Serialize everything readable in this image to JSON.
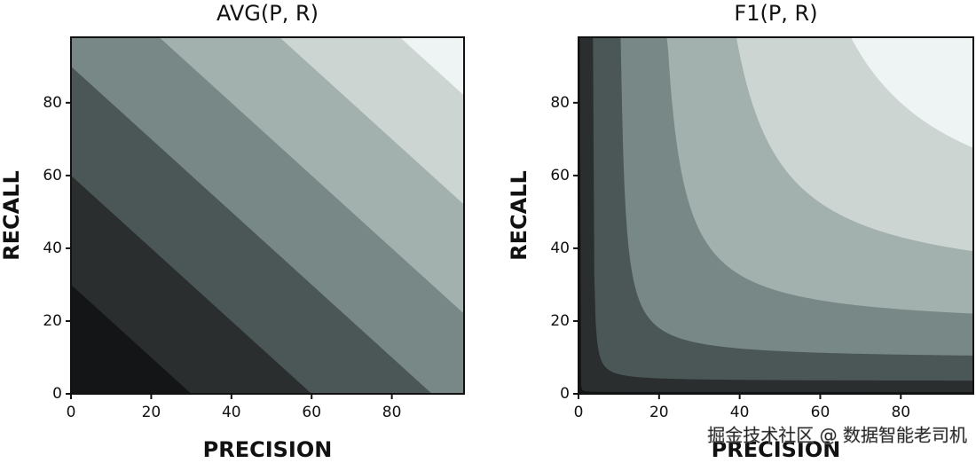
{
  "chart_data": [
    {
      "type": "contour",
      "title": "AVG(P, R)",
      "x_label": "PRECISION",
      "y_label": "RECALL",
      "z": "mean",
      "levels": [
        15,
        30,
        45,
        60,
        75,
        90
      ],
      "colors": [
        "#141516",
        "#2a2e2f",
        "#4b5657",
        "#788886",
        "#a2b0ae",
        "#cdd5d3",
        "#eef3f3"
      ],
      "xlim": [
        0,
        98
      ],
      "ylim": [
        0,
        98
      ],
      "xticks": [
        0,
        20,
        40,
        60,
        80
      ],
      "yticks": [
        0,
        20,
        40,
        60,
        80
      ]
    },
    {
      "type": "contour",
      "title": "F1(P, R)",
      "x_label": "PRECISION",
      "y_label": "RECALL",
      "z": "harmonic_mean",
      "levels": [
        1,
        7,
        19,
        36,
        56,
        80
      ],
      "colors": [
        "#141516",
        "#2a2e2f",
        "#4b5657",
        "#788886",
        "#a2b0ae",
        "#cdd5d3",
        "#eef3f3"
      ],
      "xlim": [
        0,
        98
      ],
      "ylim": [
        0,
        98
      ],
      "xticks": [
        0,
        20,
        40,
        60,
        80
      ],
      "yticks": [
        0,
        20,
        40,
        60,
        80
      ]
    }
  ],
  "watermark": "掘金技术社区 @ 数据智能老司机"
}
